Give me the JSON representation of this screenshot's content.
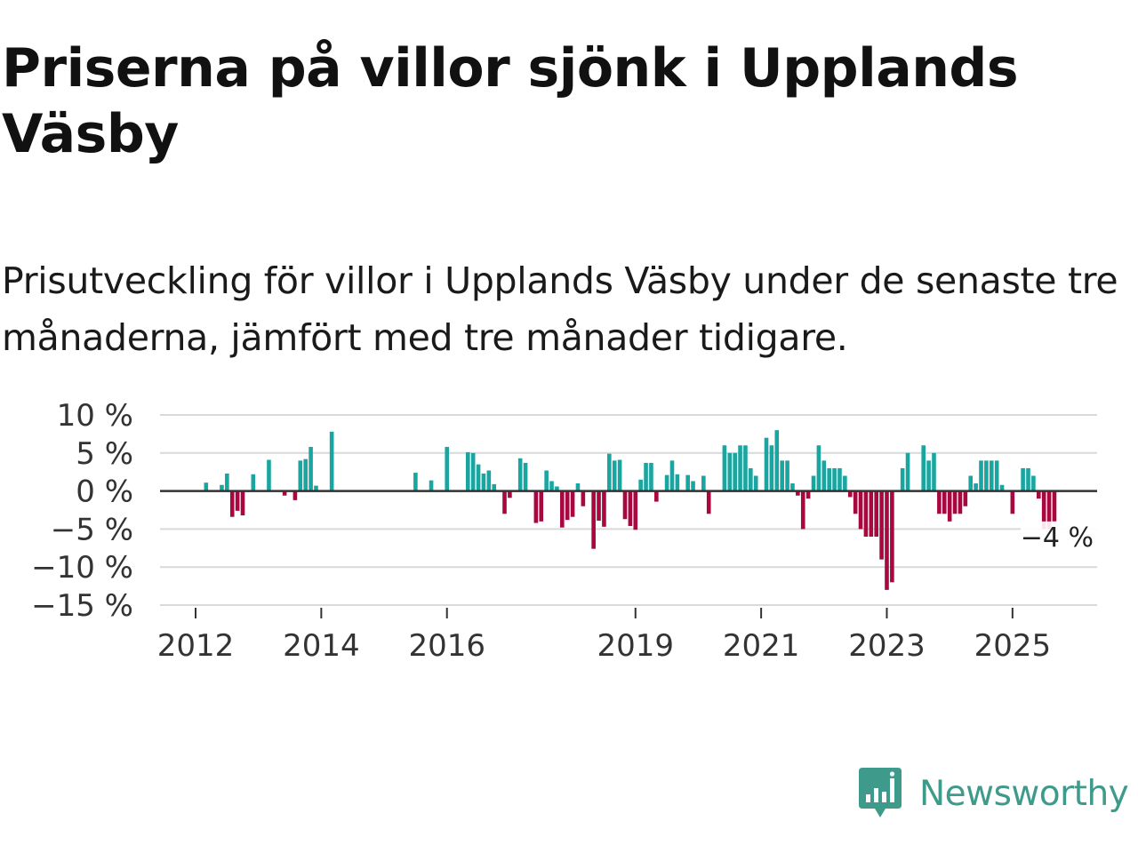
{
  "title": "Priserna på villor sjönk i Upplands Väsby",
  "subtitle": "Prisutveckling för villor i Upplands Väsby under de senaste tre månaderna, jämfört med tre månader tidigare.",
  "brand": {
    "name": "Newsworthy",
    "icon": "newsworthy-logo-icon",
    "color": "#3e9b8c"
  },
  "colors": {
    "positive": "#1aa5a0",
    "negative": "#a8083f",
    "grid": "#d9d9d9",
    "zero": "#333333"
  },
  "chart_data": {
    "type": "bar",
    "title": "",
    "xlabel": "",
    "ylabel": "",
    "ylim": [
      -15,
      10
    ],
    "yticks": [
      {
        "value": 10,
        "label": "10 %"
      },
      {
        "value": 5,
        "label": "5 %"
      },
      {
        "value": 0,
        "label": "0 %"
      },
      {
        "value": -5,
        "label": "−5 %"
      },
      {
        "value": -10,
        "label": "−10 %"
      },
      {
        "value": -15,
        "label": "−15 %"
      }
    ],
    "xticks": [
      {
        "month": 0,
        "label": "2012"
      },
      {
        "month": 24,
        "label": "2014"
      },
      {
        "month": 48,
        "label": "2016"
      },
      {
        "month": 84,
        "label": "2019"
      },
      {
        "month": 108,
        "label": "2021"
      },
      {
        "month": 132,
        "label": "2023"
      },
      {
        "month": 156,
        "label": "2025"
      }
    ],
    "x_start": "2012-01",
    "series": [
      {
        "name": "Prisutveckling (%)",
        "points": [
          [
            2,
            1.1
          ],
          [
            5,
            0.8
          ],
          [
            6,
            2.3
          ],
          [
            7,
            -3.4
          ],
          [
            8,
            -2.6
          ],
          [
            9,
            -3.2
          ],
          [
            11,
            2.2
          ],
          [
            14,
            4.1
          ],
          [
            17,
            -0.6
          ],
          [
            19,
            -1.2
          ],
          [
            20,
            4.0
          ],
          [
            21,
            4.2
          ],
          [
            22,
            5.8
          ],
          [
            23,
            0.7
          ],
          [
            26,
            7.8
          ],
          [
            42,
            2.4
          ],
          [
            45,
            1.4
          ],
          [
            48,
            5.8
          ],
          [
            52,
            5.1
          ],
          [
            53,
            5.0
          ],
          [
            54,
            3.5
          ],
          [
            55,
            2.3
          ],
          [
            56,
            2.7
          ],
          [
            57,
            0.9
          ],
          [
            59,
            -3.0
          ],
          [
            60,
            -0.9
          ],
          [
            62,
            4.3
          ],
          [
            63,
            3.7
          ],
          [
            65,
            -4.2
          ],
          [
            66,
            -4.0
          ],
          [
            67,
            2.7
          ],
          [
            68,
            1.3
          ],
          [
            69,
            0.6
          ],
          [
            70,
            -4.8
          ],
          [
            71,
            -3.8
          ],
          [
            72,
            -3.4
          ],
          [
            73,
            1.0
          ],
          [
            74,
            -2.0
          ],
          [
            76,
            -7.6
          ],
          [
            77,
            -3.9
          ],
          [
            78,
            -4.7
          ],
          [
            79,
            4.9
          ],
          [
            80,
            4.0
          ],
          [
            81,
            4.1
          ],
          [
            82,
            -3.7
          ],
          [
            83,
            -4.6
          ],
          [
            84,
            -5.1
          ],
          [
            85,
            1.5
          ],
          [
            86,
            3.7
          ],
          [
            87,
            3.7
          ],
          [
            88,
            -1.4
          ],
          [
            90,
            2.1
          ],
          [
            91,
            4.0
          ],
          [
            92,
            2.2
          ],
          [
            94,
            2.1
          ],
          [
            95,
            1.3
          ],
          [
            97,
            2.0
          ],
          [
            98,
            -3.0
          ],
          [
            101,
            6.0
          ],
          [
            102,
            5.0
          ],
          [
            103,
            5.0
          ],
          [
            104,
            6.0
          ],
          [
            105,
            6.0
          ],
          [
            106,
            3.0
          ],
          [
            107,
            2.0
          ],
          [
            109,
            7.0
          ],
          [
            110,
            6.0
          ],
          [
            111,
            8.0
          ],
          [
            112,
            4.0
          ],
          [
            113,
            4.0
          ],
          [
            114,
            1.0
          ],
          [
            115,
            -0.6
          ],
          [
            116,
            -5.0
          ],
          [
            117,
            -1.0
          ],
          [
            118,
            2.0
          ],
          [
            119,
            6.0
          ],
          [
            120,
            4.0
          ],
          [
            121,
            3.0
          ],
          [
            122,
            3.0
          ],
          [
            123,
            3.0
          ],
          [
            124,
            2.0
          ],
          [
            125,
            -0.8
          ],
          [
            126,
            -3.0
          ],
          [
            127,
            -5.0
          ],
          [
            128,
            -6.0
          ],
          [
            129,
            -6.0
          ],
          [
            130,
            -6.0
          ],
          [
            131,
            -9.0
          ],
          [
            132,
            -13.0
          ],
          [
            133,
            -12.0
          ],
          [
            135,
            3.0
          ],
          [
            136,
            5.0
          ],
          [
            139,
            6.0
          ],
          [
            140,
            4.0
          ],
          [
            141,
            5.0
          ],
          [
            142,
            -3.0
          ],
          [
            143,
            -3.0
          ],
          [
            144,
            -4.0
          ],
          [
            145,
            -3.0
          ],
          [
            146,
            -3.0
          ],
          [
            147,
            -2.0
          ],
          [
            148,
            2.0
          ],
          [
            149,
            1.0
          ],
          [
            150,
            4.0
          ],
          [
            151,
            4.0
          ],
          [
            152,
            4.0
          ],
          [
            153,
            4.0
          ],
          [
            154,
            0.8
          ],
          [
            156,
            -3.0
          ],
          [
            158,
            3.0
          ],
          [
            159,
            3.0
          ],
          [
            160,
            2.0
          ],
          [
            161,
            -1.0
          ],
          [
            162,
            -5.0
          ],
          [
            163,
            -5.0
          ],
          [
            164,
            -4.0
          ]
        ]
      }
    ],
    "annotation": {
      "label": "−4 %",
      "value": -4
    }
  }
}
